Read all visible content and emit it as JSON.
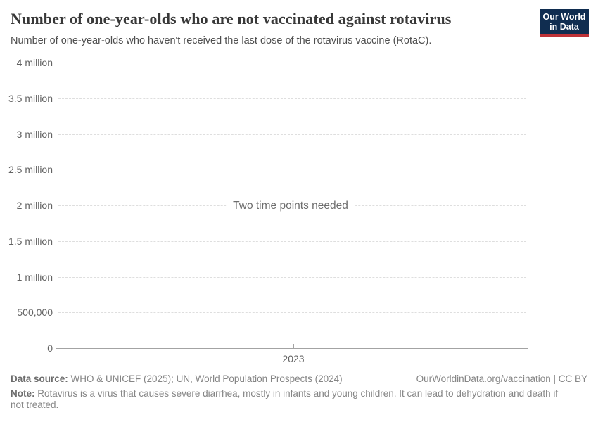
{
  "header": {
    "title": "Number of one-year-olds who are not vaccinated against rotavirus",
    "subtitle": "Number of one-year-olds who haven't received the last dose of the rotavirus vaccine (RotaC).",
    "logo": {
      "line1": "Our World",
      "line2": "in Data"
    }
  },
  "chart_data": {
    "type": "line",
    "title": "Number of one-year-olds who are not vaccinated against rotavirus",
    "series": [],
    "x": [],
    "message": "Two time points needed",
    "x_ticks": [
      "2023"
    ],
    "y_ticks": [
      {
        "label": "4 million",
        "value": 4000000
      },
      {
        "label": "3.5 million",
        "value": 3500000
      },
      {
        "label": "3 million",
        "value": 3000000
      },
      {
        "label": "2.5 million",
        "value": 2500000
      },
      {
        "label": "2 million",
        "value": 2000000
      },
      {
        "label": "1.5 million",
        "value": 1500000
      },
      {
        "label": "1 million",
        "value": 1000000
      },
      {
        "label": "500,000",
        "value": 500000
      },
      {
        "label": "0",
        "value": 0
      }
    ],
    "ylim": [
      0,
      4000000
    ],
    "grid": "horizontal-dashed",
    "legend_position": "none"
  },
  "footer": {
    "data_source_label": "Data source:",
    "data_source": "WHO & UNICEF (2025); UN, World Population Prospects (2024)",
    "citation": "OurWorldinData.org/vaccination | CC BY",
    "note_label": "Note:",
    "note": "Rotavirus is a virus that causes severe diarrhea, mostly in infants and young children. It can lead to dehydration and death if not treated."
  },
  "colors": {
    "logo_navy": "#102d50",
    "logo_red": "#be3237",
    "gridline": "#dedede",
    "axis_line": "#a3a3a3",
    "title_text": "#383838",
    "subtitle_text": "#4f4f4f",
    "tick_text": "#636363",
    "message_text": "#6d6d6d",
    "footer_text": "#858585"
  }
}
